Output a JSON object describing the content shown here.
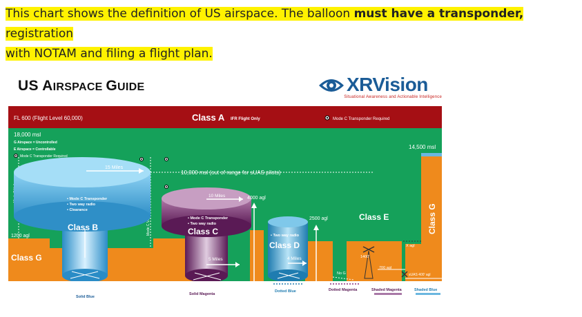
{
  "caption": {
    "part1": "This chart shows the definition of US airspace.",
    "part2_pre": " The balloon ",
    "part2_bold": "must have a transponder,",
    "part2_post": " registration",
    "line2": "with NOTAM and filing a flight plan."
  },
  "guide": {
    "title_big1": "US ",
    "title_a": "A",
    "title_small1": "IRSPACE ",
    "title_g": "G",
    "title_small2": "UIDE"
  },
  "logo": {
    "name": "XRVision",
    "tagline": "Situational Awareness and Actionable Intelligence"
  },
  "diagram": {
    "fl600": "FL 600 (Flight Level 60,000)",
    "class_a": "Class A",
    "class_a_sub": "IFR Flight Only",
    "mode_c_required": "Mode C Transponder Required",
    "msl_18000": "18,000 msl",
    "g_uncontrolled": "G Airspace = Uncontrolled",
    "e_controllable": "E Airspace = Controllable",
    "mode_c_required_2": "Mode C Transponder Required",
    "msl_14500": "14,500 msl",
    "miles_15": "15 Miles",
    "msl_10000": "10,000 msl (out of range for sUAS pilots)",
    "miles_10": "10 Miles",
    "agl_4000": "4000 agl",
    "agl_2500": "2500 agl",
    "class_e": "Class E",
    "class_g_right": "Class G",
    "mode_c_veil_left": "Mode C Veil",
    "mode_c_veil_mid": "Mode C Veil",
    "class_b_items": [
      "• Mode C Transponder",
      "• Two way radio",
      "• Clearance"
    ],
    "class_b": "Class B",
    "class_c_items": [
      "• Mode C Transponder",
      "• Two way radio"
    ],
    "class_c": "Class C",
    "class_d_items": [
      "• Two way radio"
    ],
    "class_d": "Class D",
    "agl_1200": "1200 agl",
    "class_g_left": "Class G",
    "miles_5": "5 Miles",
    "miles_4": "4 Miles",
    "agl_1400": "1400'",
    "agl_700": "700 agl",
    "x_agl": "X agl",
    "suas_400": "sUAS 400' agl",
    "no_g": "No G",
    "legend": [
      "Solid Blue",
      "Solid Magenta",
      "Dotted Blue",
      "Dotted Magenta",
      "Shaded Magenta",
      "Shaded Blue"
    ],
    "colors": {
      "class_a_red": "#a50f14",
      "green": "#15a15a",
      "orange": "#ef8a1c",
      "class_b_blue": "#5ab7e8",
      "class_c_purple": "#6b2163",
      "class_d_blue": "#2e8fc0",
      "magenta": "#8a2a7b"
    }
  }
}
